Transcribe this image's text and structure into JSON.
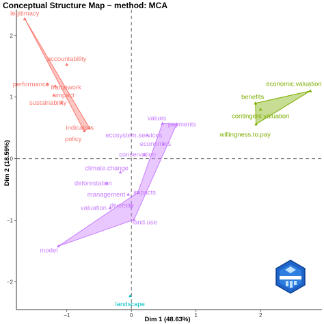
{
  "chart_data": {
    "type": "scatter",
    "title": "Conceptual Structure Map − method: MCA",
    "xlabel": "Dim 1 (48.63%)",
    "ylabel": "Dim 2 (18.59%)",
    "xlim": [
      -1.78,
      2.95
    ],
    "ylim": [
      -2.45,
      2.42
    ],
    "x_ticks": [
      -1,
      0,
      1,
      2
    ],
    "y_ticks": [
      -2,
      -1,
      0,
      1,
      2
    ],
    "reference_lines": {
      "x": 0,
      "y": 0,
      "style": "dashed"
    },
    "grid": false,
    "clusters": [
      {
        "color": "#F8766D",
        "hull": [
          "legitimacy",
          "policy",
          "indicators"
        ],
        "points": [
          {
            "label": "legitimacy",
            "x": -1.65,
            "y": 2.27
          },
          {
            "label": "accountability",
            "x": -1.0,
            "y": 1.53
          },
          {
            "label": "performance",
            "x": -1.3,
            "y": 1.21
          },
          {
            "label": "framework",
            "x": -1.18,
            "y": 1.18
          },
          {
            "label": "sustainability",
            "x": -1.08,
            "y": 0.91
          },
          {
            "label": "impact",
            "x": -1.2,
            "y": 1.03
          },
          {
            "label": "indicators",
            "x": -0.65,
            "y": 0.5
          },
          {
            "label": "policy",
            "x": -0.73,
            "y": 0.45
          }
        ]
      },
      {
        "color": "#C77CFF",
        "hull": [
          "values",
          "payments",
          "land.use",
          "model",
          "impacts"
        ],
        "points": [
          {
            "label": "values",
            "x": 0.48,
            "y": 0.57
          },
          {
            "label": "payments",
            "x": 0.7,
            "y": 0.56
          },
          {
            "label": "ecosystem.services",
            "x": 0.25,
            "y": 0.38
          },
          {
            "label": "economics",
            "x": 0.5,
            "y": 0.24
          },
          {
            "label": "conservation",
            "x": 0.2,
            "y": 0.07
          },
          {
            "label": "climate.change",
            "x": -0.17,
            "y": -0.22
          },
          {
            "label": "deforestation",
            "x": -0.38,
            "y": -0.4
          },
          {
            "label": "impacts",
            "x": 0.1,
            "y": -0.55
          },
          {
            "label": "management",
            "x": -0.05,
            "y": -0.58
          },
          {
            "label": "valuation",
            "x": -0.33,
            "y": -0.8
          },
          {
            "label": "diversity",
            "x": 0.0,
            "y": -0.76
          },
          {
            "label": "land.use",
            "x": 0.04,
            "y": -0.99
          },
          {
            "label": "model",
            "x": -1.13,
            "y": -1.42
          }
        ]
      },
      {
        "color": "#7CAE00",
        "hull": [
          "economic.valuation",
          "benefits",
          "willingness.to.pay"
        ],
        "points": [
          {
            "label": "economic.valuation",
            "x": 2.77,
            "y": 1.1
          },
          {
            "label": "benefits",
            "x": 1.92,
            "y": 0.9
          },
          {
            "label": "contingent.valuation",
            "x": 2.0,
            "y": 0.8
          },
          {
            "label": "willingness.to.pay",
            "x": 1.93,
            "y": 0.56
          }
        ]
      },
      {
        "color": "#00BFC4",
        "hull": [],
        "points": [
          {
            "label": "landscape",
            "x": -0.02,
            "y": -2.23
          }
        ]
      }
    ]
  }
}
